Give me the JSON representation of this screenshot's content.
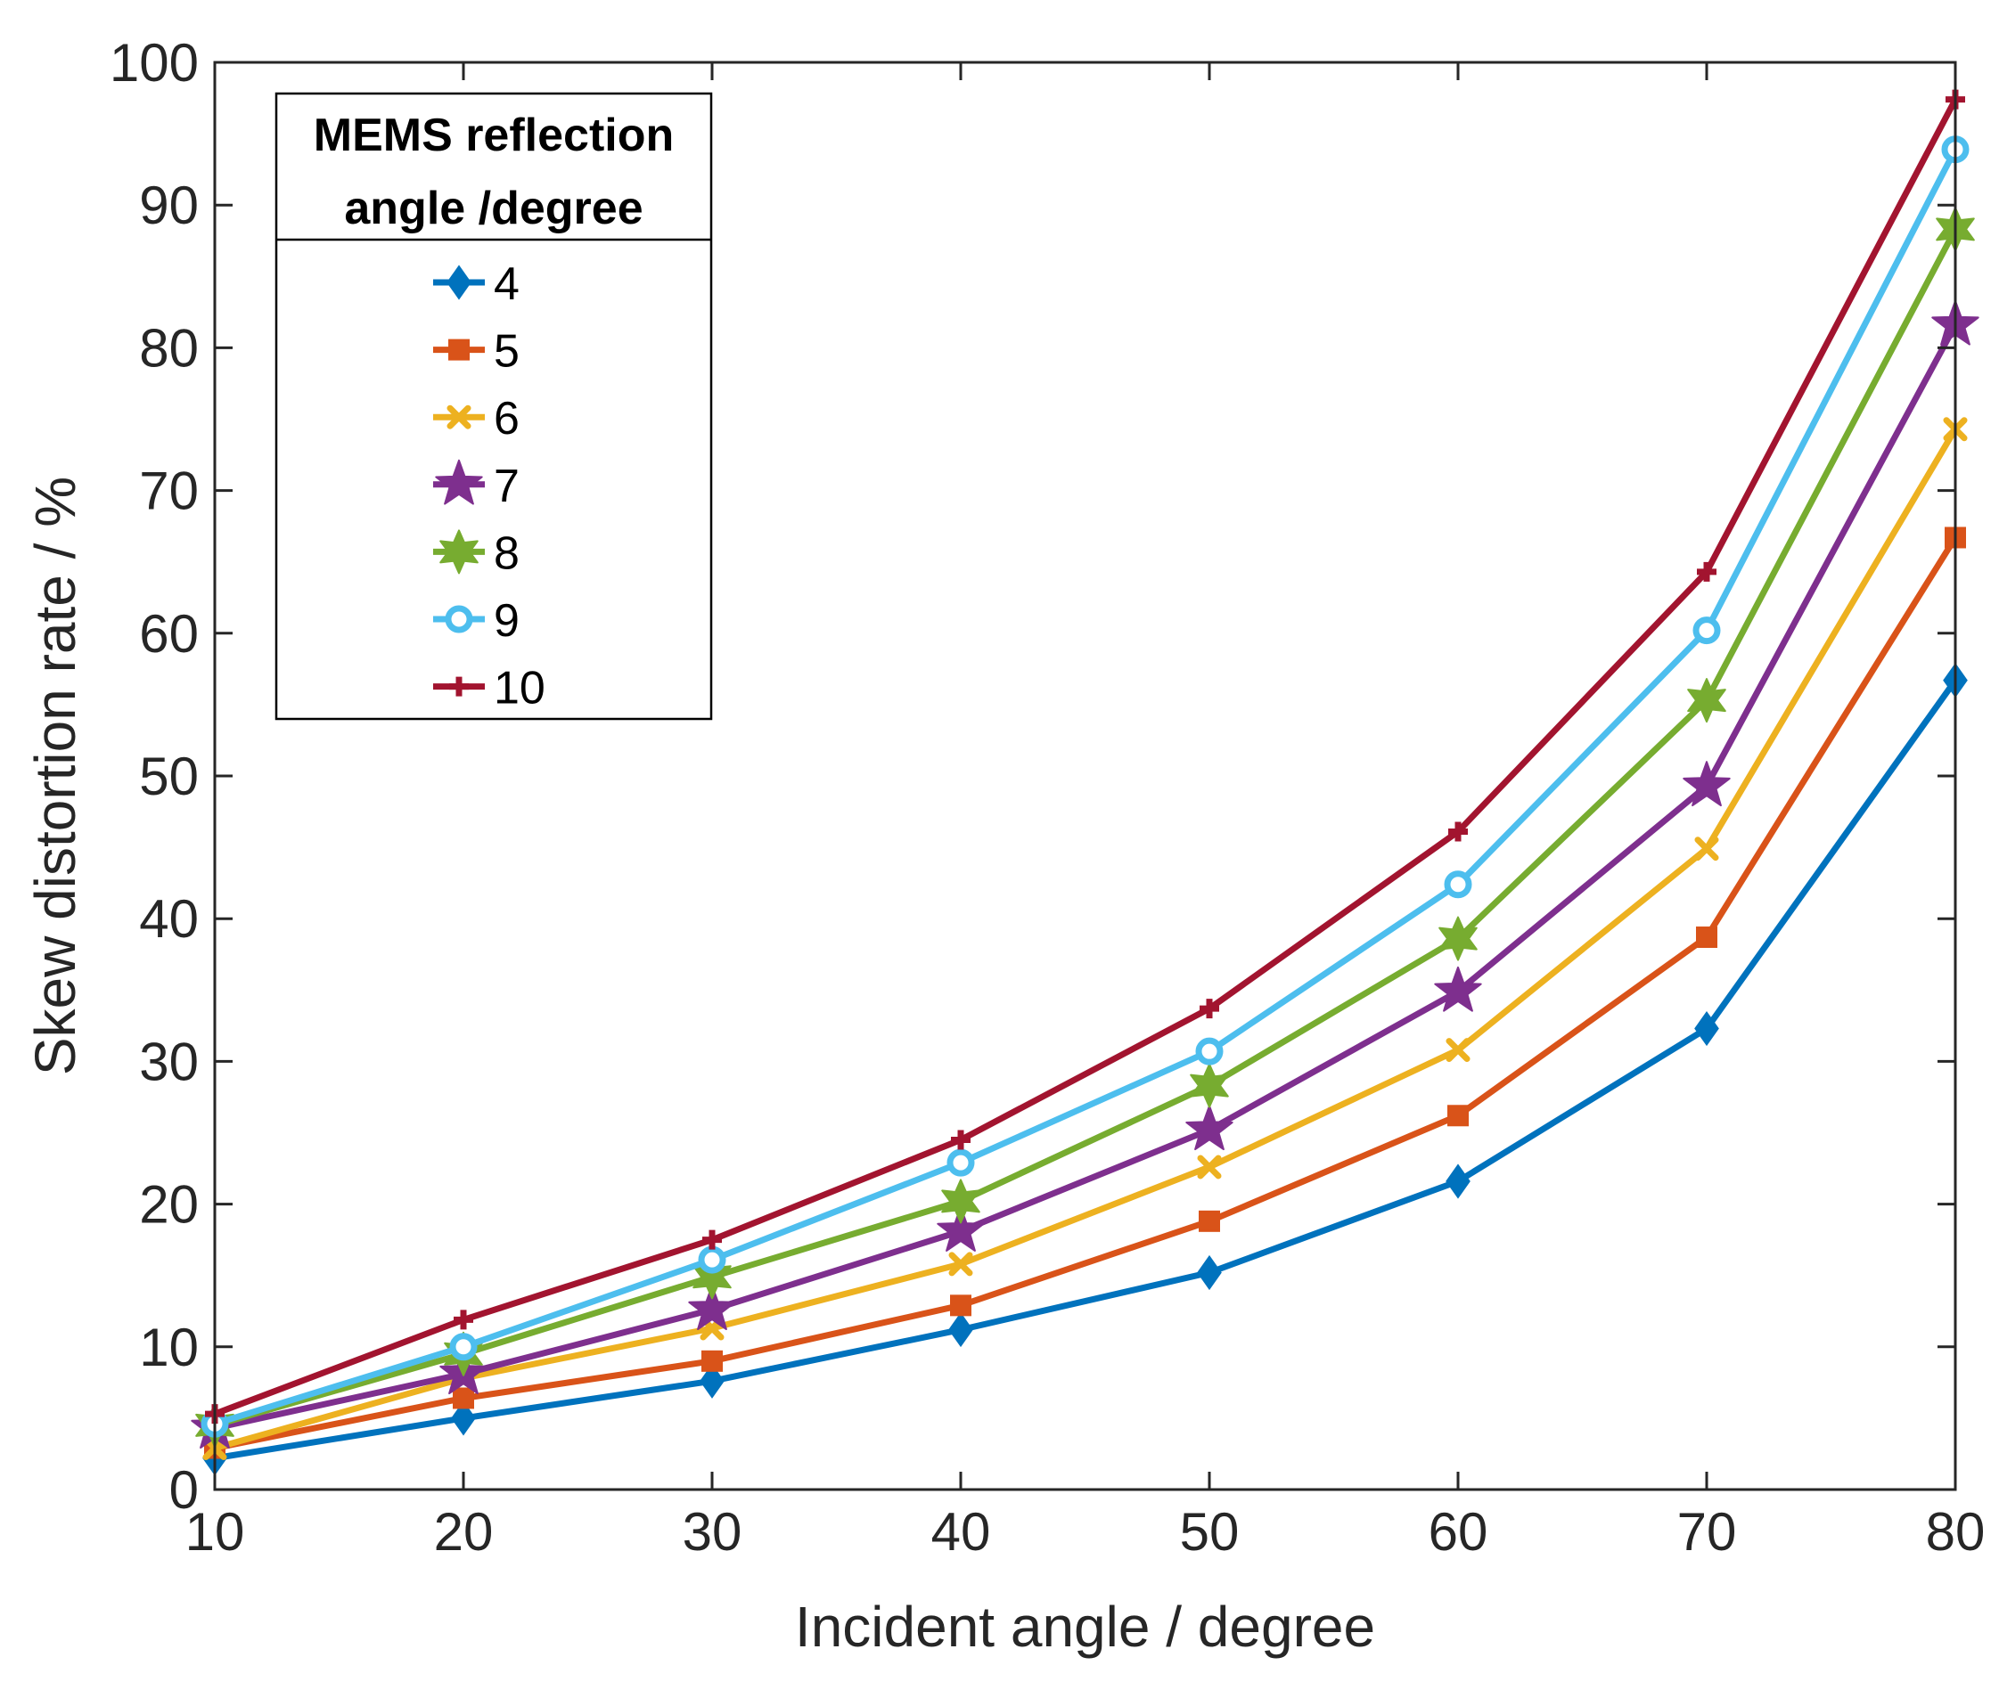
{
  "chart_data": {
    "type": "line",
    "title": "",
    "xlabel": "Incident angle / degree",
    "ylabel": "Skew distortion rate / %",
    "xlim": [
      10,
      80
    ],
    "ylim": [
      0,
      100
    ],
    "x": [
      10,
      20,
      30,
      40,
      50,
      60,
      70,
      80
    ],
    "xticks": [
      10,
      20,
      30,
      40,
      50,
      60,
      70,
      80
    ],
    "yticks": [
      0,
      10,
      20,
      30,
      40,
      50,
      60,
      70,
      80,
      90,
      100
    ],
    "grid": false,
    "legend": {
      "title_lines": [
        "MEMS reflection",
        "angle /degree"
      ],
      "placement": "top-left"
    },
    "series": [
      {
        "name": "4",
        "color": "#0072BD",
        "marker": "diamond",
        "values": [
          2.2,
          5.0,
          7.6,
          11.2,
          15.2,
          21.6,
          32.3,
          56.7
        ]
      },
      {
        "name": "5",
        "color": "#D95319",
        "marker": "square",
        "values": [
          2.9,
          6.4,
          9.0,
          12.9,
          18.8,
          26.2,
          38.7,
          66.7
        ]
      },
      {
        "name": "6",
        "color": "#EDB120",
        "marker": "x",
        "values": [
          2.9,
          7.8,
          11.3,
          15.8,
          22.6,
          30.8,
          44.9,
          74.3
        ]
      },
      {
        "name": "7",
        "color": "#7E2F8E",
        "marker": "pentagram",
        "values": [
          4.3,
          8.1,
          12.6,
          18.1,
          25.2,
          34.9,
          49.3,
          81.6
        ]
      },
      {
        "name": "8",
        "color": "#77AC30",
        "marker": "hexagram",
        "values": [
          4.5,
          9.5,
          14.9,
          20.2,
          28.3,
          38.6,
          55.3,
          88.3
        ]
      },
      {
        "name": "9",
        "color": "#4DBEEE",
        "marker": "circle",
        "values": [
          4.6,
          10.0,
          16.1,
          22.9,
          30.7,
          42.4,
          60.2,
          93.9
        ]
      },
      {
        "name": "10",
        "color": "#A2142F",
        "marker": "plus",
        "values": [
          5.3,
          11.9,
          17.5,
          24.5,
          33.7,
          46.1,
          64.3,
          97.4
        ]
      }
    ]
  }
}
